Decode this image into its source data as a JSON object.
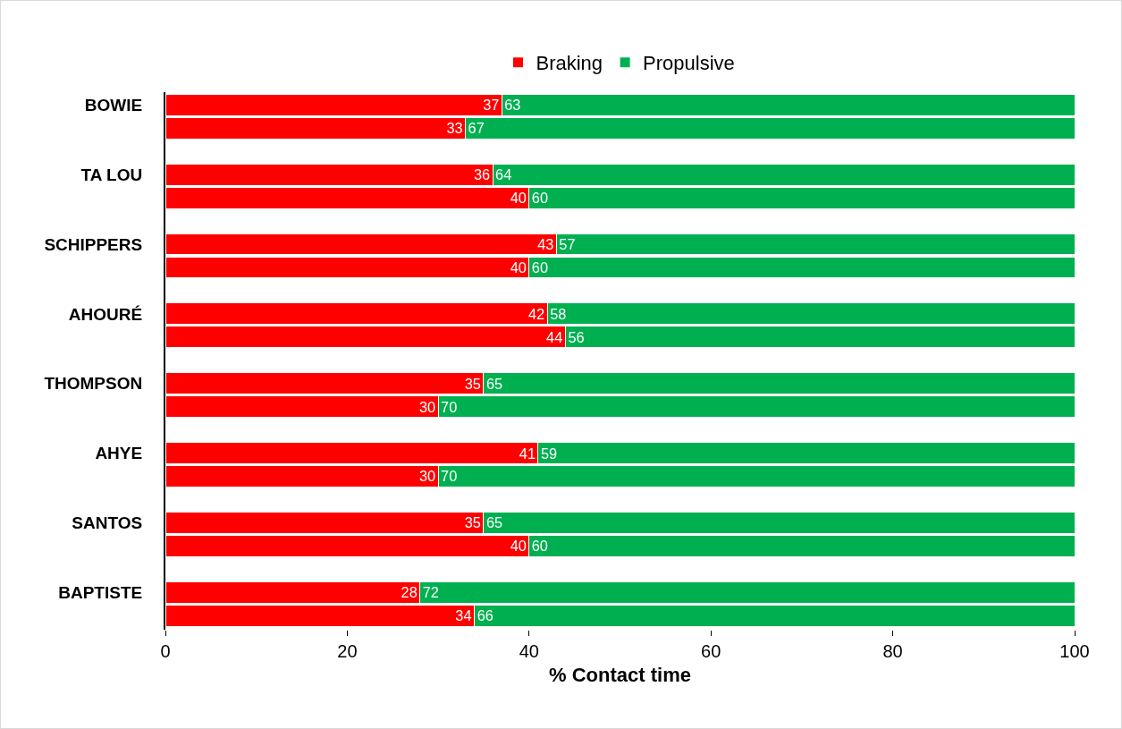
{
  "chart_data": {
    "type": "bar",
    "orientation": "horizontal",
    "stacked": true,
    "data_labels": true,
    "legend": "top",
    "grid": false,
    "xlabel": "% Contact time",
    "xlim": [
      0,
      100
    ],
    "xticks": [
      0,
      20,
      40,
      60,
      80,
      100
    ],
    "categories": [
      "BOWIE",
      null,
      "TA LOU",
      null,
      "SCHIPPERS",
      null,
      "AHOURÉ",
      null,
      "THOMPSON",
      null,
      "AHYE",
      null,
      "SANTOS",
      null,
      "BAPTISTE",
      null
    ],
    "series": [
      {
        "name": "Braking",
        "color": "#ff0000",
        "values": [
          37,
          33,
          36,
          40,
          43,
          40,
          42,
          44,
          35,
          30,
          41,
          30,
          35,
          40,
          28,
          34
        ]
      },
      {
        "name": "Propulsive",
        "color": "#00b050",
        "values": [
          63,
          67,
          64,
          60,
          57,
          60,
          58,
          56,
          65,
          70,
          59,
          70,
          65,
          60,
          72,
          66
        ]
      }
    ]
  }
}
